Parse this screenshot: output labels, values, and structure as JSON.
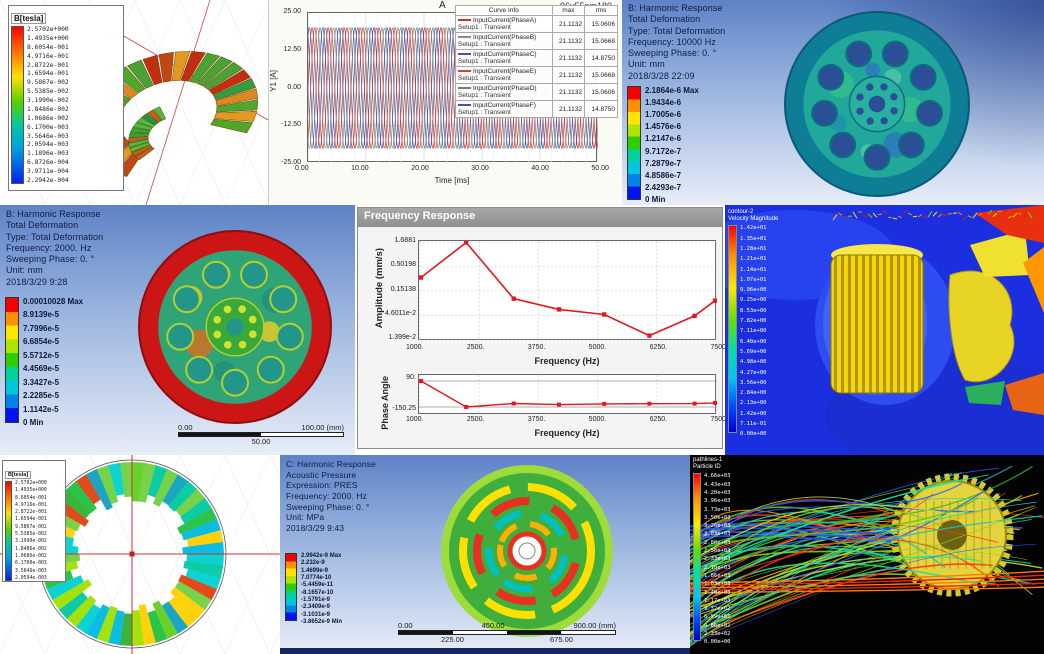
{
  "chart_data": [
    {
      "type": "line",
      "title": "A",
      "corner_label": "96v55nm180",
      "xlabel": "Time [ms]",
      "ylabel": "Y1 [A]",
      "xlim": [
        0,
        50
      ],
      "ylim": [
        -25,
        25
      ],
      "xticks": [
        "0.00",
        "10.00",
        "20.00",
        "30.00",
        "40.00",
        "50.00"
      ],
      "yticks": [
        "25.00",
        "12.50",
        "0.00",
        "-12.50",
        "-25.00"
      ],
      "waveform": {
        "amplitude": 21.1132,
        "period_ms": 2.778,
        "series": [
          {
            "name": "InputCurrent(PhaseA)",
            "color": "#c23438",
            "phase_deg": 0
          },
          {
            "name": "InputCurrent(PhaseB)",
            "color": "#8a8a8a",
            "phase_deg": -120
          },
          {
            "name": "InputCurrent(PhaseC)",
            "color": "#46589e",
            "phase_deg": -240
          },
          {
            "name": "InputCurrent(PhaseE)",
            "color": "#d04038",
            "phase_deg": -60
          },
          {
            "name": "InputCurrent(PhaseD)",
            "color": "#7a7a7a",
            "phase_deg": -180
          },
          {
            "name": "InputCurrent(PhaseF)",
            "color": "#3f55a8",
            "phase_deg": -300
          }
        ]
      },
      "legend_table": {
        "headers": [
          "Curve Info",
          "max",
          "rms"
        ],
        "rows": [
          {
            "name": "InputCurrent(PhaseA)",
            "setup": "Setup1 : Transient",
            "max": "21.1132",
            "rms": "15.0606",
            "color": "#c23438"
          },
          {
            "name": "InputCurrent(PhaseB)",
            "setup": "Setup1 : Transient",
            "max": "21.1132",
            "rms": "15.0668",
            "color": "#8a8a8a"
          },
          {
            "name": "InputCurrent(PhaseC)",
            "setup": "Setup1 : Transient",
            "max": "21.1132",
            "rms": "14.8750",
            "color": "#46589e"
          },
          {
            "name": "InputCurrent(PhaseE)",
            "setup": "Setup1 : Transient",
            "max": "21.1132",
            "rms": "15.0668",
            "color": "#d04038"
          },
          {
            "name": "InputCurrent(PhaseD)",
            "setup": "Setup1 : Transient",
            "max": "21.1132",
            "rms": "15.0606",
            "color": "#7a7a7a"
          },
          {
            "name": "InputCurrent(PhaseF)",
            "setup": "Setup1 : Transient",
            "max": "21.1132",
            "rms": "14.8750",
            "color": "#3f55a8"
          }
        ]
      }
    },
    {
      "type": "line",
      "ylog": true,
      "ylabel": "Amplitude (mm/s)",
      "xlabel": "Frequency (Hz)",
      "x": [
        1000,
        2000,
        3050,
        4050,
        5050,
        6050,
        7050,
        7500
      ],
      "y": [
        0.3,
        1.6881,
        0.105,
        0.062,
        0.048,
        0.017,
        0.045,
        0.095
      ],
      "xlim": [
        1000,
        7500
      ],
      "yticks": [
        "1.6881",
        "0.50198",
        "0.15138",
        "4.6011e-2",
        "1.399e-2"
      ],
      "xticks": [
        "1000.",
        "2500.",
        "3750.",
        "5000.",
        "6250.",
        "7500."
      ],
      "color": "#e01820"
    },
    {
      "type": "line",
      "ylabel": "Phase Angle",
      "xlabel": "Frequency (Hz)",
      "x": [
        1000,
        2000,
        3050,
        4050,
        5050,
        6050,
        7050,
        7500
      ],
      "y": [
        90,
        -150,
        -118,
        -128,
        -122,
        -120,
        -119,
        -112
      ],
      "xlim": [
        1000,
        7500
      ],
      "ylim": [
        -150.25,
        90
      ],
      "yticks": [
        "90.",
        "-150.25"
      ],
      "xticks": [
        "1000.",
        "2500.",
        "3750.",
        "5000.",
        "6250.",
        "7500."
      ],
      "color": "#e01820"
    }
  ],
  "panels": {
    "flux_torus": {
      "legend_title": "B[tesla]",
      "legend_values": [
        "2.5702e+000",
        "1.4935e+000",
        "8.6054e-001",
        "4.9716e-001",
        "2.8722e-001",
        "1.6594e-001",
        "9.5867e-002",
        "5.5385e-002",
        "3.1990e-002",
        "1.8486e-002",
        "1.0686e-002",
        "6.1700e-003",
        "3.5646e-003",
        "2.0594e-003",
        "1.1896e-003",
        "6.8726e-004",
        "3.9711e-004",
        "2.2942e-004"
      ]
    },
    "harmonic_wheel_10000": {
      "info": [
        "B: Harmonic Response",
        "Total Deformation",
        "Type: Total Deformation",
        "Frequency: 10000 Hz",
        "Sweeping Phase: 0. °",
        "Unit: mm",
        "2018/3/28 22:09"
      ],
      "legend": [
        "2.1864e-6 Max",
        "1.9434e-6",
        "1.7005e-6",
        "1.4576e-6",
        "1.2147e-6",
        "9.7172e-7",
        "7.2879e-7",
        "4.8586e-7",
        "2.4293e-7",
        "0 Min"
      ]
    },
    "harmonic_wheel_2000": {
      "info": [
        "B: Harmonic Response",
        "Total Deformation",
        "Type: Total Deformation",
        "Frequency: 2000. Hz",
        "Sweeping Phase: 0. °",
        "Unit: mm",
        "2018/3/29 9:28"
      ],
      "legend": [
        "0.00010028 Max",
        "8.9139e-5",
        "7.7996e-5",
        "6.6854e-5",
        "5.5712e-5",
        "4.4569e-5",
        "3.3427e-5",
        "2.2285e-5",
        "1.1142e-5",
        "0 Min"
      ],
      "ruler": {
        "start": "0.00",
        "mid": "50.00",
        "end": "100.00 (mm)"
      }
    },
    "frequency_response": {
      "window_title": "Frequency Response"
    },
    "cfd_velocity": {
      "legend_title_lines": [
        "contour-2",
        "Velocity Magnitude"
      ],
      "legend_values": [
        "1.42e+01",
        "1.35e+01",
        "1.28e+01",
        "1.21e+01",
        "1.14e+01",
        "1.07e+01",
        "9.96e+00",
        "9.25e+00",
        "8.53e+00",
        "7.82e+00",
        "7.11e+00",
        "6.40e+00",
        "5.69e+00",
        "4.98e+00",
        "4.27e+00",
        "3.56e+00",
        "2.84e+00",
        "2.13e+00",
        "1.42e+00",
        "7.11e-01",
        "0.00e+00"
      ]
    },
    "flux_rotor": {
      "legend_title": "B[tesla]",
      "legend_values": [
        "2.5702e+000",
        "1.4935e+000",
        "8.6054e-001",
        "4.9716e-001",
        "2.8722e-001",
        "1.6594e-001",
        "9.5867e-002",
        "5.5385e-002",
        "3.1990e-002",
        "1.8486e-002",
        "1.0686e-002",
        "6.1700e-003",
        "3.5646e-003",
        "2.0594e-003"
      ]
    },
    "acoustic_disc": {
      "info": [
        "C: Harmonic Response",
        "Acoustic Pressure",
        "Expression: PRES",
        "Frequency: 2000. Hz",
        "Sweeping Phase: 0. °",
        "Unit: MPa",
        "2018/3/29 9:43"
      ],
      "legend": [
        "2.9942e-9 Max",
        "2.232e-9",
        "1.4699e-9",
        "7.0774e-10",
        "-5.4459e-11",
        "-8.1657e-10",
        "-1.5791e-9",
        "-2.3409e-9",
        "-3.1031e-9",
        "-3.8652e-9 Min"
      ],
      "ruler": {
        "top": [
          "0.00",
          "450.00",
          "900.00 (mm)"
        ],
        "bottom": [
          "225.00",
          "675.00"
        ]
      }
    },
    "pathlines": {
      "legend_title_lines": [
        "pathlines-1",
        "Particle ID"
      ],
      "legend_values": [
        "4.66e+03",
        "4.43e+03",
        "4.20e+03",
        "3.96e+03",
        "3.73e+03",
        "3.50e+03",
        "3.26e+03",
        "3.03e+03",
        "2.80e+03",
        "2.56e+03",
        "2.33e+03",
        "2.10e+03",
        "1.86e+03",
        "1.63e+03",
        "1.40e+03",
        "1.17e+03",
        "9.32e+02",
        "6.99e+02",
        "4.66e+02",
        "2.33e+02",
        "0.00e+00"
      ]
    }
  },
  "colors": {
    "ansys_bands": [
      "#f40000",
      "#ff8e00",
      "#ffe400",
      "#aee400",
      "#2ecf00",
      "#00d29a",
      "#00c6de",
      "#0084e8",
      "#0011f2"
    ],
    "cfd_background": "#1b2fe0",
    "curve_red": "#c23438",
    "curve_blue": "#3f55a8"
  }
}
